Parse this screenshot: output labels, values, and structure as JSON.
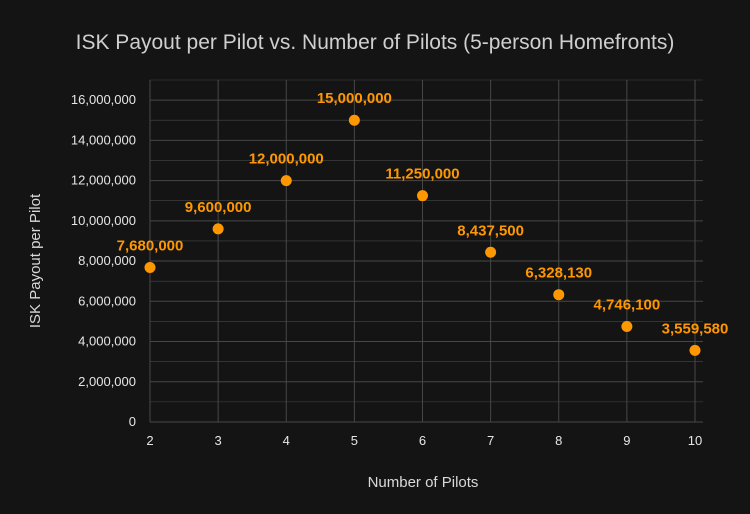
{
  "chart_data": {
    "type": "scatter",
    "title": "ISK Payout per Pilot vs. Number of Pilots (5-person Homefronts)",
    "xlabel": "Number of Pilots",
    "ylabel": "ISK Payout per Pilot",
    "x": [
      2,
      3,
      4,
      5,
      6,
      7,
      8,
      9,
      10
    ],
    "y": [
      7680000,
      9600000,
      12000000,
      15000000,
      11250000,
      8437500,
      6328130,
      4746100,
      3559580
    ],
    "data_labels": [
      "7,680,000",
      "9,600,000",
      "12,000,000",
      "15,000,000",
      "11,250,000",
      "8,437,500",
      "6,328,130",
      "4,746,100",
      "3,559,580"
    ],
    "xlim": [
      2,
      10
    ],
    "ylim": [
      0,
      17000000
    ],
    "x_ticks": [
      "2",
      "3",
      "4",
      "5",
      "6",
      "7",
      "8",
      "9",
      "10"
    ],
    "y_ticks": [
      "0",
      "2,000,000",
      "4,000,000",
      "6,000,000",
      "8,000,000",
      "10,000,000",
      "12,000,000",
      "14,000,000",
      "16,000,000"
    ],
    "y_tick_values": [
      0,
      2000000,
      4000000,
      6000000,
      8000000,
      10000000,
      12000000,
      14000000,
      16000000
    ],
    "grid": true,
    "colors": {
      "marker": "#ff9800",
      "label": "#ff9800",
      "grid": "#474747",
      "background": "#141414"
    }
  }
}
